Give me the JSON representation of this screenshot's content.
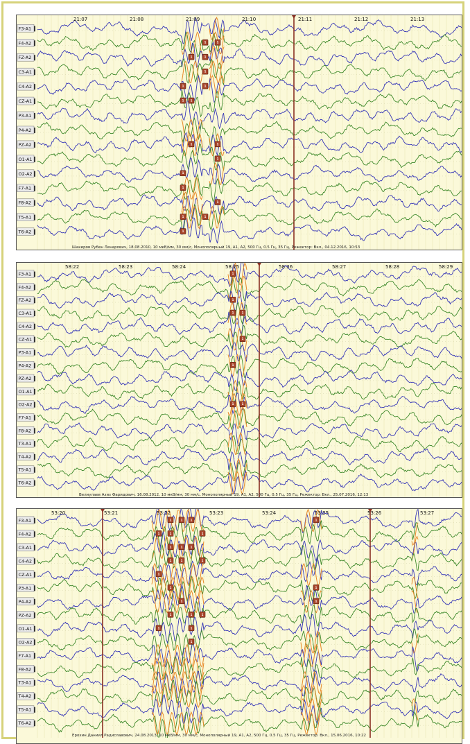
{
  "panels": [
    {
      "id": "p1",
      "channels": [
        "F3-A1",
        "F4-A2",
        "FZ-A2",
        "C3-A1",
        "C4-A2",
        "CZ-A1",
        "P3-A1",
        "P4-A2",
        "PZ-A2",
        "O1-A1",
        "O2-A2",
        "F7-A1",
        "F8-A2",
        "T5-A1",
        "T6-A2"
      ],
      "times": [
        "21:07",
        "21:08",
        "21:09",
        "21:10",
        "21:11",
        "21:12",
        "21:13"
      ],
      "info": "Шакиров Рубен Ленарович, 18.08.2010, 10 мкВ/мм, 30 мм/с, Монополярный 19, A1, A2, 500 Гц, 0.5 Гц, 35 Гц, Режектор: Вкл., 04.12.2016, 10:53",
      "markers": [
        "1",
        "1",
        "1",
        "1",
        "1",
        "1",
        "1",
        "1",
        "1",
        "1",
        "1",
        "1",
        "1",
        "1",
        "1",
        "1",
        "1",
        "1",
        "1",
        "1",
        "1",
        "1",
        "1",
        "1"
      ]
    },
    {
      "id": "p2",
      "channels": [
        "F3-A1",
        "F4-A2",
        "FZ-A2",
        "C3-A1",
        "C4-A2",
        "CZ-A1",
        "P3-A1",
        "P4-A2",
        "PZ-A2",
        "O1-A1",
        "O2-A2",
        "F7-A1",
        "F8-A2",
        "T3-A1",
        "T4-A2",
        "T5-A1",
        "T6-A2"
      ],
      "times": [
        "58:22",
        "58:23",
        "58:24",
        "58:25",
        "58:26",
        "58:27",
        "58:28",
        "58:29"
      ],
      "info": "Велиулаев Азиз Фаридович, 16.08.2012, 10 мкВ/мм, 30 мм/с, Монополярный 19, A1, A2, 500 Гц, 0.5 Гц, 35 Гц, Режектор: Вкл., 25.07.2016, 12:13",
      "markers": [
        "1",
        "1",
        "1",
        "1",
        "1",
        "1",
        "1",
        "1"
      ]
    },
    {
      "id": "p3",
      "channels": [
        "F3-A1",
        "F4-A2",
        "C3-A1",
        "C4-A2",
        "CZ-A1",
        "P3-A1",
        "P4-A2",
        "PZ-A2",
        "O1-A1",
        "O2-A2",
        "F7-A1",
        "F8-A2",
        "T3-A1",
        "T4-A2",
        "T5-A1",
        "T6-A2"
      ],
      "times": [
        "53:20",
        "53:21",
        "53:22",
        "53:23",
        "53:24",
        "53:25",
        "53:26",
        "53:27"
      ],
      "info": "Ерохин Даниил Радиславович, 24.08.2013, 10 мкВ/мм, 30 мм/с, Монополярный 19, A1, A2, 500 Гц, 0.5 Гц, 35 Гц, Режектор: Вкл., 15.06.2016, 10:22",
      "markers": [
        "1",
        "1",
        "1",
        "1",
        "1",
        "1",
        "1",
        "1",
        "1",
        "1",
        "1",
        "1",
        "1",
        "1",
        "1",
        "1",
        "1",
        "1",
        "1",
        "1",
        "1",
        "1",
        "1",
        "1"
      ]
    }
  ],
  "colors": {
    "background": "#fbf9d9",
    "trace_blue": "#3838b8",
    "trace_green": "#3f8a2c",
    "spike_orange": "#e88a2a",
    "marker": "#a8452b",
    "cursor": "#8a2f22",
    "label_box": "#e9e9e9"
  }
}
